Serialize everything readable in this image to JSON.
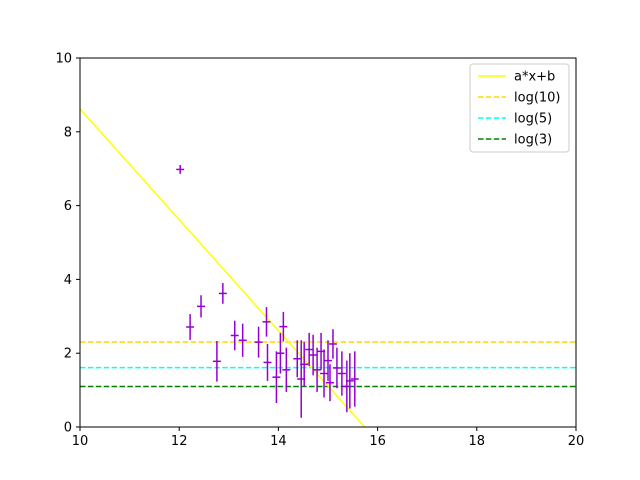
{
  "chart_data": {
    "type": "scatter",
    "xlim": [
      10,
      20
    ],
    "ylim": [
      0,
      10
    ],
    "x_ticks": [
      10,
      12,
      14,
      16,
      18,
      20
    ],
    "y_ticks": [
      0,
      2,
      4,
      6,
      8,
      10
    ],
    "grid": false,
    "legend_position": "top-right",
    "legend": [
      {
        "label": "a*x+b",
        "color": "#ffff00",
        "style": "solid"
      },
      {
        "label": "log(10)",
        "color": "#ffd700",
        "style": "dashed"
      },
      {
        "label": "log(5)",
        "color": "#00ffff",
        "style": "dashed"
      },
      {
        "label": "log(3)",
        "color": "#008000",
        "style": "dashed"
      }
    ],
    "fit_line": {
      "name": "a*x+b",
      "x": [
        10.0,
        15.74
      ],
      "y": [
        8.62,
        0.0
      ],
      "color": "#ffff00"
    },
    "hlines": [
      {
        "name": "log(10)",
        "y": 2.302585,
        "color": "#ffd700"
      },
      {
        "name": "log(5)",
        "y": 1.609438,
        "color": "#00ffff"
      },
      {
        "name": "log(3)",
        "y": 1.098612,
        "color": "#008000"
      }
    ],
    "scatter": {
      "color": "#9400d3",
      "points": [
        {
          "x": 12.02,
          "y": 6.98,
          "xerr": 0.08,
          "yerr": 0.12
        },
        {
          "x": 12.22,
          "y": 2.71,
          "xerr": 0.08,
          "yerr": 0.35
        },
        {
          "x": 12.44,
          "y": 3.27,
          "xerr": 0.08,
          "yerr": 0.3
        },
        {
          "x": 12.76,
          "y": 1.78,
          "xerr": 0.08,
          "yerr": 0.55
        },
        {
          "x": 12.88,
          "y": 3.62,
          "xerr": 0.08,
          "yerr": 0.28
        },
        {
          "x": 13.12,
          "y": 2.48,
          "xerr": 0.08,
          "yerr": 0.4
        },
        {
          "x": 13.28,
          "y": 2.35,
          "xerr": 0.08,
          "yerr": 0.45
        },
        {
          "x": 13.6,
          "y": 2.3,
          "xerr": 0.08,
          "yerr": 0.42
        },
        {
          "x": 13.76,
          "y": 2.85,
          "xerr": 0.08,
          "yerr": 0.4
        },
        {
          "x": 13.78,
          "y": 1.75,
          "xerr": 0.08,
          "yerr": 0.5
        },
        {
          "x": 13.96,
          "y": 1.35,
          "xerr": 0.08,
          "yerr": 0.7
        },
        {
          "x": 14.04,
          "y": 2.0,
          "xerr": 0.08,
          "yerr": 0.55
        },
        {
          "x": 14.1,
          "y": 2.72,
          "xerr": 0.08,
          "yerr": 0.4
        },
        {
          "x": 14.16,
          "y": 1.55,
          "xerr": 0.08,
          "yerr": 0.6
        },
        {
          "x": 14.38,
          "y": 1.85,
          "xerr": 0.08,
          "yerr": 0.5
        },
        {
          "x": 14.46,
          "y": 1.3,
          "xerr": 0.08,
          "yerr": 1.05
        },
        {
          "x": 14.52,
          "y": 1.7,
          "xerr": 0.08,
          "yerr": 0.6
        },
        {
          "x": 14.62,
          "y": 2.1,
          "xerr": 0.08,
          "yerr": 0.45
        },
        {
          "x": 14.7,
          "y": 1.95,
          "xerr": 0.08,
          "yerr": 0.55
        },
        {
          "x": 14.78,
          "y": 1.55,
          "xerr": 0.08,
          "yerr": 0.6
        },
        {
          "x": 14.86,
          "y": 2.05,
          "xerr": 0.08,
          "yerr": 0.5
        },
        {
          "x": 14.92,
          "y": 1.45,
          "xerr": 0.08,
          "yerr": 0.65
        },
        {
          "x": 15.0,
          "y": 1.8,
          "xerr": 0.08,
          "yerr": 0.55
        },
        {
          "x": 15.04,
          "y": 1.2,
          "xerr": 0.08,
          "yerr": 0.5
        },
        {
          "x": 15.1,
          "y": 2.25,
          "xerr": 0.08,
          "yerr": 0.4
        },
        {
          "x": 15.18,
          "y": 1.6,
          "xerr": 0.08,
          "yerr": 0.55
        },
        {
          "x": 15.28,
          "y": 1.45,
          "xerr": 0.08,
          "yerr": 0.6
        },
        {
          "x": 15.38,
          "y": 1.1,
          "xerr": 0.08,
          "yerr": 0.7
        },
        {
          "x": 15.44,
          "y": 1.25,
          "xerr": 0.08,
          "yerr": 0.75
        },
        {
          "x": 15.54,
          "y": 1.3,
          "xerr": 0.08,
          "yerr": 0.75
        }
      ]
    }
  }
}
